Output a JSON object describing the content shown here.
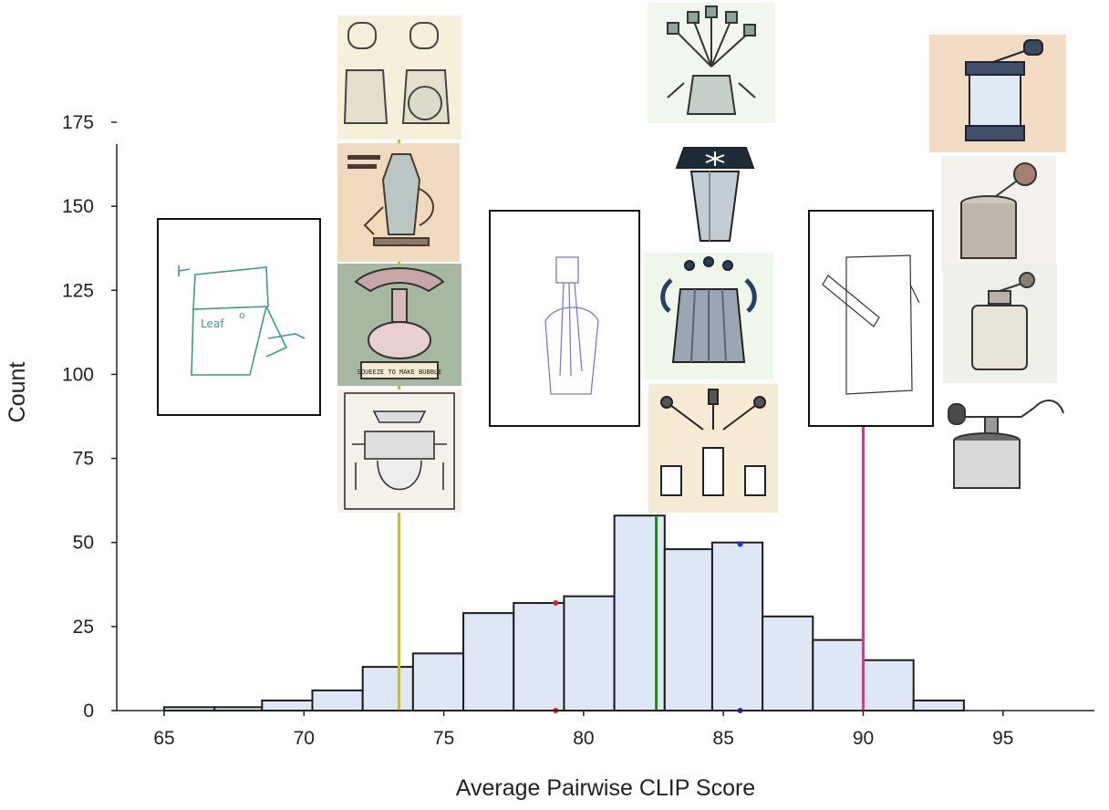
{
  "chart_data": {
    "type": "bar",
    "xlabel": "Average Pairwise CLIP Score",
    "ylabel": "Count",
    "xlim": [
      63.8,
      95.4
    ],
    "ylim": [
      0,
      175
    ],
    "xticks": [
      65,
      70,
      75,
      80,
      85,
      90,
      95
    ],
    "yticks": [
      0,
      25,
      50,
      75,
      100,
      125,
      150,
      175
    ],
    "bins": [
      {
        "start": 65.0,
        "end": 66.8,
        "count": 1
      },
      {
        "start": 66.8,
        "end": 68.5,
        "count": 1
      },
      {
        "start": 68.5,
        "end": 70.3,
        "count": 3
      },
      {
        "start": 70.3,
        "end": 72.1,
        "count": 6
      },
      {
        "start": 72.1,
        "end": 73.9,
        "count": 13
      },
      {
        "start": 73.9,
        "end": 75.7,
        "count": 17
      },
      {
        "start": 75.7,
        "end": 77.5,
        "count": 29
      },
      {
        "start": 77.5,
        "end": 79.3,
        "count": 32
      },
      {
        "start": 79.3,
        "end": 81.1,
        "count": 34
      },
      {
        "start": 81.1,
        "end": 82.9,
        "count": 58
      },
      {
        "start": 82.9,
        "end": 84.6,
        "count": 48
      },
      {
        "start": 84.6,
        "end": 86.4,
        "count": 50
      },
      {
        "start": 86.4,
        "end": 88.2,
        "count": 28
      },
      {
        "start": 88.2,
        "end": 90.0,
        "count": 21
      },
      {
        "start": 90.0,
        "end": 91.8,
        "count": 15
      },
      {
        "start": 91.8,
        "end": 93.6,
        "count": 3
      }
    ],
    "markers": [
      {
        "x": 73.4,
        "top": 175,
        "color": "#c8c020"
      },
      {
        "x": 82.6,
        "top": 58,
        "color": "#1a8a1a"
      },
      {
        "x": 90.0,
        "top": 88,
        "color": "#e0338a"
      }
    ],
    "dots": [
      {
        "x": 79.0,
        "y": 32,
        "color": "#e02020"
      },
      {
        "x": 79.0,
        "y": 0,
        "color": "#e02020"
      },
      {
        "x": 85.6,
        "y": 49.5,
        "color": "#2030e0"
      },
      {
        "x": 85.6,
        "y": 0,
        "color": "#2030e0"
      }
    ],
    "grid": false
  },
  "sketch_labels": {
    "left_sketch": [
      "Leaf",
      "o"
    ]
  },
  "thumbnail_icons": {
    "left_sketch": "squeezer-sketch-icon",
    "left_col": [
      "bag-squeezer-icon",
      "coffee-pot-icon",
      "hand-juicer-icon",
      "press-diagram-icon"
    ],
    "mid_sketch": "bottle-sketch-icon",
    "mid_col": [
      "multi-arm-gadget-icon",
      "star-press-icon",
      "bottle-press-icon",
      "three-arm-diagram-icon"
    ],
    "right_sketch": "lever-sketch-icon",
    "right_col": [
      "coffee-grinder-icon",
      "hand-grinder-icon",
      "crank-grinder-icon",
      "lever-grinder-icon"
    ]
  },
  "colors": {
    "bar_fill": "#dde7f6",
    "bar_edge": "#1c1c1c",
    "yellow_line": "#c8c020",
    "green_line": "#1a8a1a",
    "pink_line": "#e0338a"
  }
}
